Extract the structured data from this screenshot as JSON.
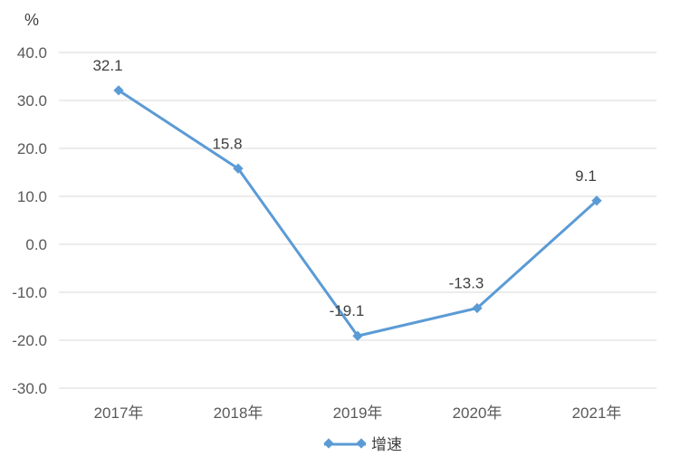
{
  "chart_data": {
    "type": "line",
    "unit_label": "%",
    "categories": [
      "2017年",
      "2018年",
      "2019年",
      "2020年",
      "2021年"
    ],
    "series": [
      {
        "name": "增速",
        "values": [
          32.1,
          15.8,
          -19.1,
          -13.3,
          9.1
        ]
      }
    ],
    "data_labels": [
      "32.1",
      "15.8",
      "-19.1",
      "-13.3",
      "9.1"
    ],
    "ylim": [
      -30,
      40
    ],
    "yticks": [
      40,
      30,
      20,
      10,
      0,
      -10,
      -20,
      -30
    ],
    "ytick_labels": [
      "40.0",
      "30.0",
      "20.0",
      "10.0",
      "0.0",
      "-10.0",
      "-20.0",
      "-30.0"
    ],
    "grid": true,
    "legend_position": "bottom",
    "line_color": "#5b9bd5"
  }
}
